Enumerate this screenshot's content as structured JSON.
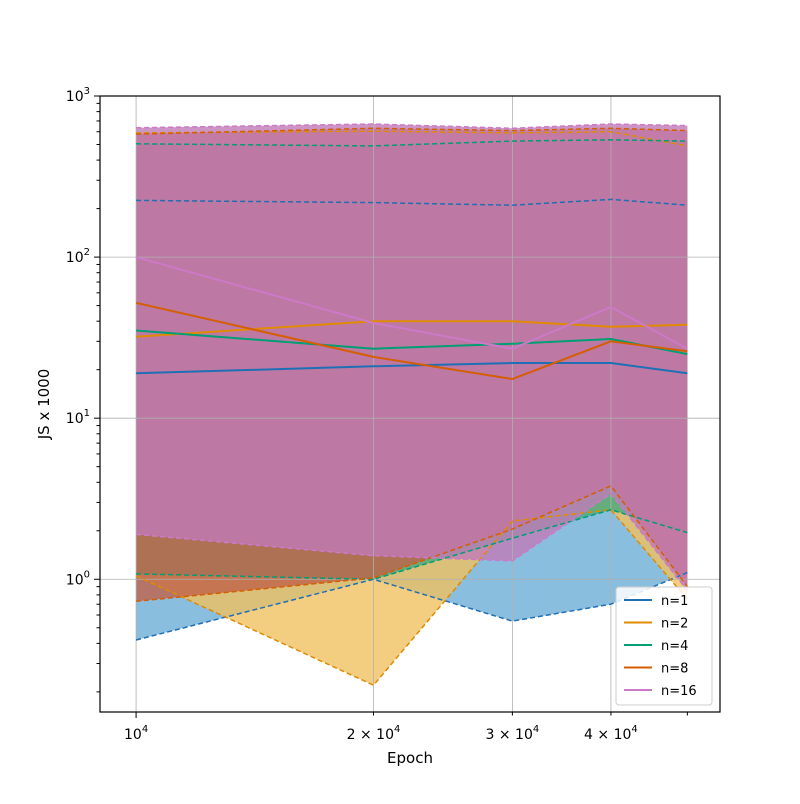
{
  "chart_data": {
    "type": "line",
    "title": "",
    "xlabel": "Epoch",
    "ylabel": "JS x 1000",
    "xscale": "log",
    "yscale": "log",
    "xlim": [
      9000,
      55000
    ],
    "ylim": [
      0.15,
      1000
    ],
    "x": [
      10000,
      20000,
      30000,
      40000,
      50000
    ],
    "x_ticks": [
      {
        "value": 10000,
        "mantissa": "",
        "exp": "4"
      },
      {
        "value": 20000,
        "mantissa": "2",
        "exp": "4"
      },
      {
        "value": 30000,
        "mantissa": "3",
        "exp": "4"
      },
      {
        "value": 40000,
        "mantissa": "4",
        "exp": "4"
      }
    ],
    "y_ticks": [
      {
        "value": 1,
        "exp": "0"
      },
      {
        "value": 10,
        "exp": "1"
      },
      {
        "value": 100,
        "exp": "2"
      },
      {
        "value": 1000,
        "exp": "3"
      }
    ],
    "grid": true,
    "legend_position": "bottom-right",
    "series": [
      {
        "name": "n=1",
        "color": "#1f6fb4",
        "fill": "#6baed6",
        "mean": [
          19,
          21,
          22,
          22,
          19
        ],
        "lower": [
          0.42,
          1.0,
          0.55,
          0.7,
          1.1
        ],
        "upper": [
          225,
          218,
          210,
          228,
          210
        ]
      },
      {
        "name": "n=2",
        "color": "#e08b00",
        "fill": "#f0c060",
        "mean": [
          32,
          40,
          40,
          37,
          38
        ],
        "lower": [
          1.05,
          0.22,
          2.3,
          2.7,
          0.75
        ],
        "upper": [
          590,
          605,
          590,
          600,
          490
        ]
      },
      {
        "name": "n=4",
        "color": "#009e73",
        "fill": "#49a87f",
        "mean": [
          35,
          27,
          29,
          31,
          25
        ],
        "lower": [
          1.08,
          1.0,
          1.8,
          2.7,
          1.95
        ],
        "upper": [
          505,
          490,
          525,
          535,
          525
        ]
      },
      {
        "name": "n=8",
        "color": "#d55e00",
        "fill": "#c0614a",
        "mean": [
          52,
          24,
          17.5,
          30,
          26
        ],
        "lower": [
          0.73,
          1.02,
          2.05,
          3.8,
          0.9
        ],
        "upper": [
          580,
          630,
          610,
          630,
          610
        ]
      },
      {
        "name": "n=16",
        "color": "#cc79c7",
        "fill": "#c07ab8",
        "mean": [
          100,
          39,
          27,
          49,
          27
        ],
        "lower": [
          1.9,
          1.4,
          1.3,
          3.4,
          0.85
        ],
        "upper": [
          635,
          670,
          630,
          670,
          655
        ]
      }
    ]
  }
}
